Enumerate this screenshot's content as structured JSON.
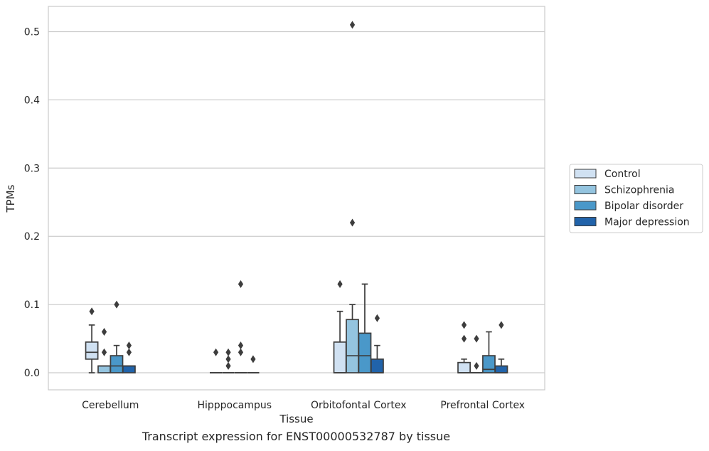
{
  "chart_data": {
    "type": "boxplot",
    "caption": "Transcript expression for ENST00000532787 by tissue",
    "xlabel": "Tissue",
    "ylabel": "TPMs",
    "ylim": [
      -0.025,
      0.537
    ],
    "yticks": [
      0.0,
      0.1,
      0.2,
      0.3,
      0.4,
      0.5
    ],
    "ytick_labels": [
      "0.0",
      "0.1",
      "0.2",
      "0.3",
      "0.4",
      "0.5"
    ],
    "grid": "horizontal",
    "legend_position": "right",
    "categories": [
      "Cerebellum",
      "Hipppocampus",
      "Orbitofontal Cortex",
      "Prefrontal Cortex"
    ],
    "series": [
      {
        "name": "Control",
        "color": "#d0e1f2",
        "boxes": [
          {
            "min": 0.0,
            "q1": 0.02,
            "median": 0.03,
            "q3": 0.045,
            "max": 0.07,
            "outliers": [
              0.09
            ]
          },
          {
            "min": 0.0,
            "q1": 0.0,
            "median": 0.0,
            "q3": 0.0,
            "max": 0.0,
            "outliers": [
              0.03
            ]
          },
          {
            "min": 0.0,
            "q1": 0.0,
            "median": 0.0,
            "q3": 0.045,
            "max": 0.09,
            "outliers": [
              0.13
            ]
          },
          {
            "min": 0.0,
            "q1": 0.0,
            "median": 0.0,
            "q3": 0.015,
            "max": 0.02,
            "outliers": [
              0.05,
              0.07
            ]
          }
        ]
      },
      {
        "name": "Schizophrenia",
        "color": "#94c4df",
        "boxes": [
          {
            "min": 0.0,
            "q1": 0.0,
            "median": 0.01,
            "q3": 0.01,
            "max": 0.01,
            "outliers": [
              0.03,
              0.06
            ]
          },
          {
            "min": 0.0,
            "q1": 0.0,
            "median": 0.0,
            "q3": 0.0,
            "max": 0.0,
            "outliers": [
              0.01,
              0.02,
              0.03
            ]
          },
          {
            "min": 0.0,
            "q1": 0.0,
            "median": 0.025,
            "q3": 0.078,
            "max": 0.1,
            "outliers": [
              0.22,
              0.51
            ]
          },
          {
            "min": 0.0,
            "q1": 0.0,
            "median": 0.0,
            "q3": 0.0,
            "max": 0.0,
            "outliers": [
              0.01,
              0.05
            ]
          }
        ]
      },
      {
        "name": "Bipolar disorder",
        "color": "#4a98c9",
        "boxes": [
          {
            "min": 0.0,
            "q1": 0.0,
            "median": 0.01,
            "q3": 0.025,
            "max": 0.04,
            "outliers": [
              0.1
            ]
          },
          {
            "min": 0.0,
            "q1": 0.0,
            "median": 0.0,
            "q3": 0.0,
            "max": 0.0,
            "outliers": [
              0.03,
              0.04,
              0.13
            ]
          },
          {
            "min": 0.0,
            "q1": 0.0,
            "median": 0.025,
            "q3": 0.058,
            "max": 0.13,
            "outliers": []
          },
          {
            "min": 0.0,
            "q1": 0.0,
            "median": 0.005,
            "q3": 0.025,
            "max": 0.06,
            "outliers": []
          }
        ]
      },
      {
        "name": "Major depression",
        "color": "#2163aa",
        "boxes": [
          {
            "min": 0.0,
            "q1": 0.0,
            "median": 0.01,
            "q3": 0.01,
            "max": 0.01,
            "outliers": [
              0.03,
              0.04
            ]
          },
          {
            "min": 0.0,
            "q1": 0.0,
            "median": 0.0,
            "q3": 0.0,
            "max": 0.0,
            "outliers": [
              0.02
            ]
          },
          {
            "min": 0.0,
            "q1": 0.0,
            "median": 0.0,
            "q3": 0.02,
            "max": 0.04,
            "outliers": [
              0.08
            ]
          },
          {
            "min": 0.0,
            "q1": 0.0,
            "median": 0.0,
            "q3": 0.01,
            "max": 0.02,
            "outliers": [
              0.07
            ]
          }
        ]
      }
    ]
  }
}
